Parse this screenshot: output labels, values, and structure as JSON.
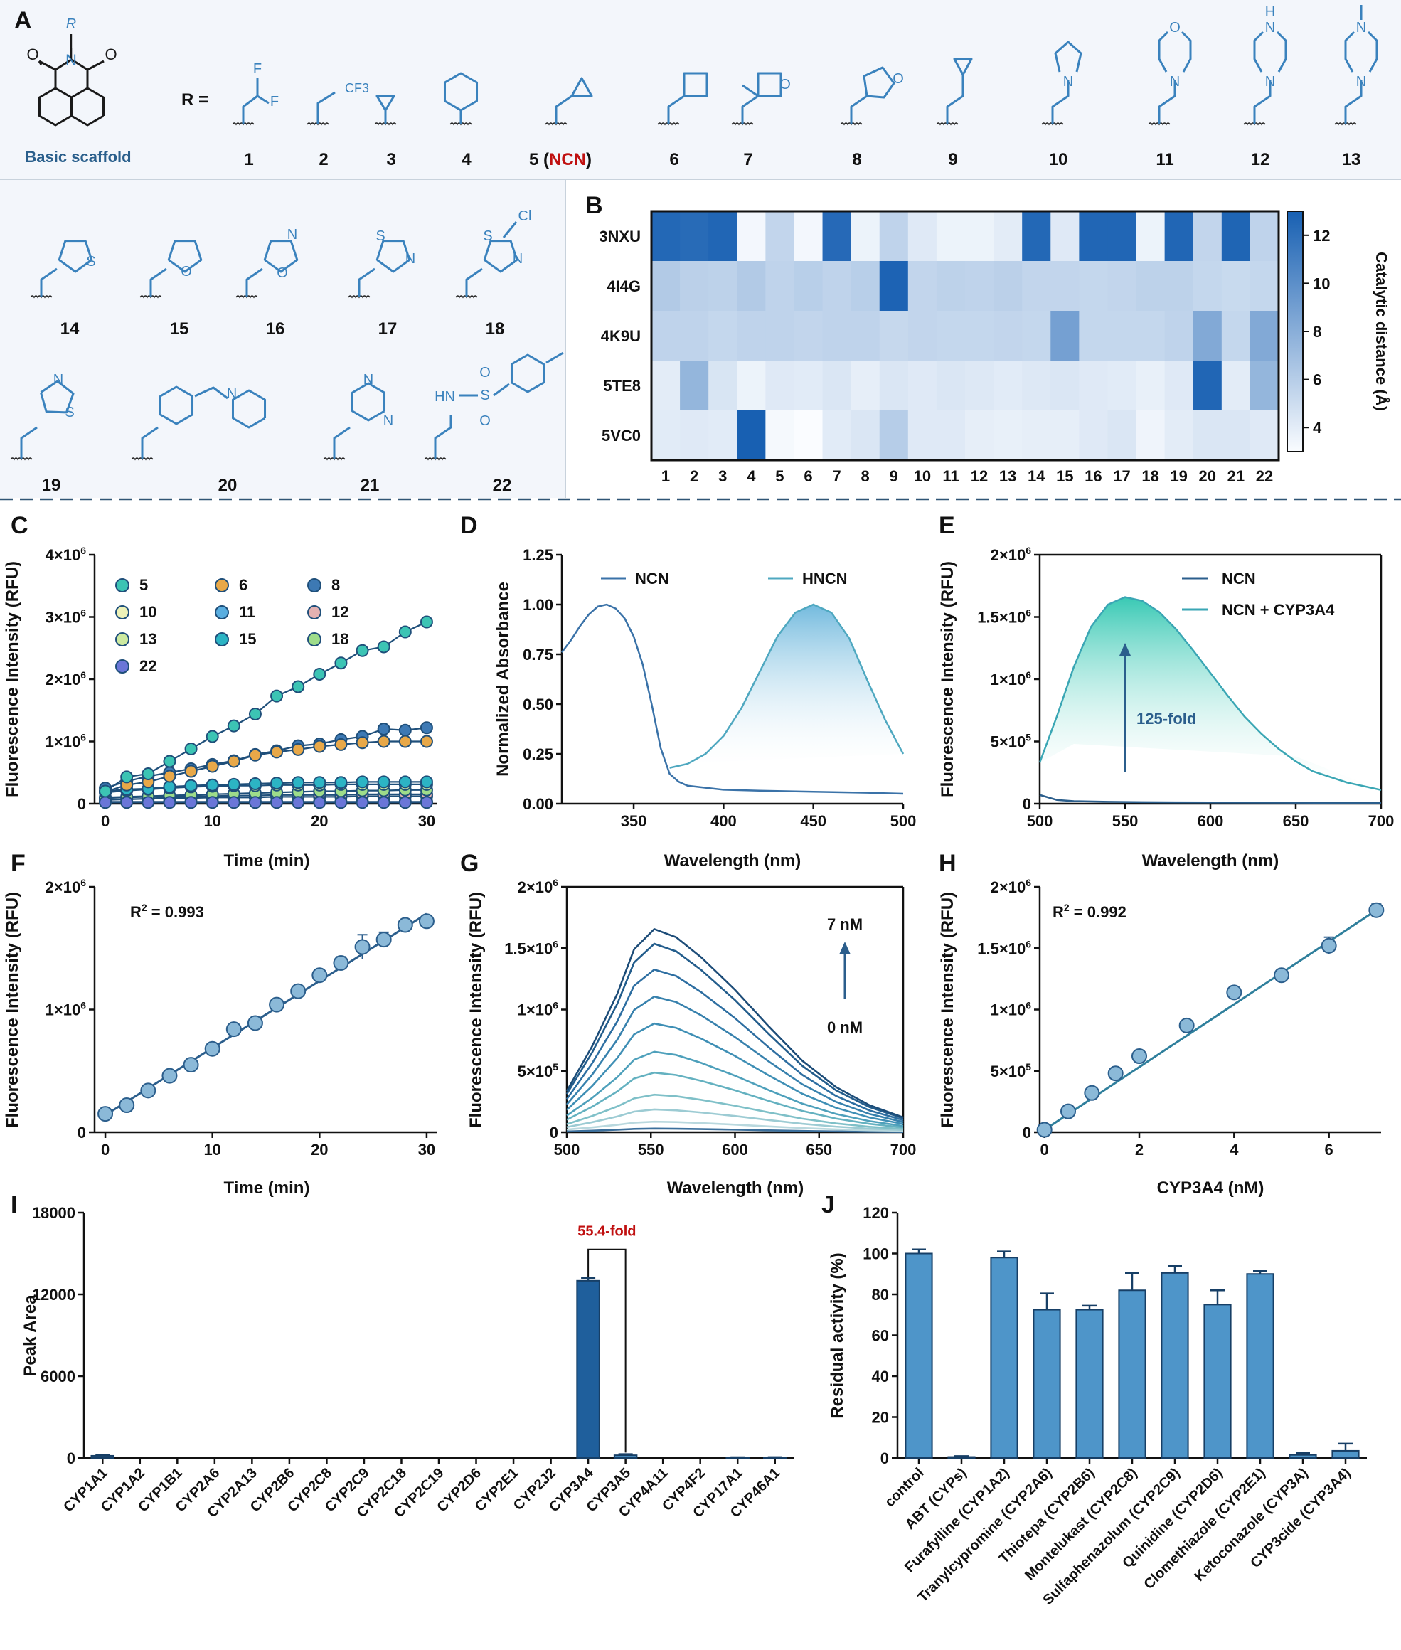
{
  "colors": {
    "scaffold_blue": "#3a82bd",
    "label_blue": "#2a5f8c",
    "ncn_red": "#c01010",
    "panel_bg": "#f3f6fb",
    "dash": "#2f5575",
    "bar_dark": "#1f5f9c",
    "bar_mid": "#4e95c9",
    "line_dark": "#2b5e8c",
    "line_light": "#4aa8b8",
    "teal_fill": "#2ec6b0"
  },
  "panelA": {
    "letter": "A",
    "caption": "Basic scaffold",
    "r_equals": "R =",
    "compound_labels": [
      "1",
      "2",
      "3",
      "4",
      "5 (",
      "NCN",
      ")",
      "6",
      "7",
      "8",
      "9",
      "10",
      "11",
      "12",
      "13"
    ],
    "row2_labels": [
      "14",
      "15",
      "16",
      "17",
      "18"
    ],
    "row3_labels": [
      "19",
      "20",
      "21",
      "22"
    ],
    "atoms": {
      "F": "F",
      "CF3": "CF3",
      "O": "O",
      "N": "N",
      "H": "H",
      "S": "S",
      "Cl": "Cl",
      "HN": "HN"
    }
  },
  "chart_data": [
    {
      "panel": "B",
      "type": "heatmap",
      "rows": [
        "3NXU",
        "4I4G",
        "4K9U",
        "5TE8",
        "5VC0"
      ],
      "columns": [
        "1",
        "2",
        "3",
        "4",
        "5",
        "6",
        "7",
        "8",
        "9",
        "10",
        "11",
        "12",
        "13",
        "14",
        "15",
        "16",
        "17",
        "18",
        "19",
        "20",
        "21",
        "22"
      ],
      "values": [
        [
          12.5,
          12.3,
          12.6,
          3.3,
          5.5,
          3.3,
          12.4,
          3.6,
          5.6,
          4.2,
          3.6,
          3.6,
          4.0,
          12.5,
          4.2,
          12.6,
          12.6,
          3.6,
          12.6,
          5.5,
          12.7,
          5.6
        ],
        [
          6.2,
          5.8,
          5.7,
          6.2,
          5.6,
          5.9,
          5.6,
          5.9,
          12.8,
          5.5,
          5.7,
          5.6,
          5.8,
          5.5,
          5.5,
          5.4,
          5.5,
          5.7,
          5.7,
          5.4,
          5.2,
          5.4
        ],
        [
          5.6,
          5.6,
          5.4,
          5.6,
          5.6,
          5.5,
          5.6,
          5.6,
          5.3,
          5.5,
          5.4,
          5.4,
          5.5,
          5.4,
          8.9,
          5.4,
          5.4,
          5.4,
          5.6,
          8.3,
          5.4,
          8.3
        ],
        [
          4.0,
          7.5,
          4.5,
          3.6,
          4.2,
          4.1,
          4.4,
          3.9,
          4.4,
          4.2,
          4.4,
          4.3,
          4.1,
          4.3,
          4.4,
          4.2,
          4.1,
          3.8,
          4.2,
          12.6,
          4.0,
          7.5
        ],
        [
          4.1,
          4.2,
          4.1,
          13.0,
          3.2,
          3.0,
          4.1,
          4.4,
          6.0,
          4.2,
          4.2,
          3.9,
          3.8,
          3.9,
          3.9,
          4.2,
          4.4,
          3.5,
          4.0,
          4.4,
          4.4,
          4.2
        ]
      ],
      "colorbar": {
        "label": "Catalytic distance (Å)",
        "ticks": [
          4,
          6,
          8,
          10,
          12
        ],
        "range": [
          3,
          13
        ]
      }
    },
    {
      "panel": "C",
      "type": "line",
      "xlabel": "Time (min)",
      "ylabel": "Fluorescence Intensity (RFU)",
      "xticks": [
        "0",
        "10",
        "20",
        "30"
      ],
      "yticks": [
        "0",
        "1×10",
        "2×10",
        "3×10",
        "4×10"
      ],
      "ytick_exp": "6",
      "xlim": [
        0,
        30
      ],
      "ylim": [
        0,
        4000000
      ],
      "x": [
        0,
        2,
        4,
        6,
        8,
        10,
        12,
        14,
        16,
        18,
        20,
        22,
        24,
        26,
        28,
        30
      ],
      "series": [
        {
          "name": "5",
          "color": "#3cc4b4",
          "values": [
            200000,
            430000,
            480000,
            680000,
            880000,
            1080000,
            1250000,
            1440000,
            1730000,
            1880000,
            2080000,
            2260000,
            2460000,
            2520000,
            2760000,
            2920000
          ],
          "err": [
            0,
            0,
            0,
            0,
            0,
            0,
            0,
            0,
            90000,
            0,
            60000,
            0,
            0,
            0,
            90000,
            0
          ]
        },
        {
          "name": "6",
          "color": "#e8a848",
          "values": [
            190000,
            300000,
            350000,
            440000,
            520000,
            600000,
            680000,
            780000,
            830000,
            870000,
            920000,
            950000,
            980000,
            1000000,
            1000000,
            1000000
          ],
          "err": [
            0,
            0,
            0,
            0,
            0,
            0,
            0,
            0,
            0,
            0,
            0,
            0,
            0,
            0,
            0,
            0
          ]
        },
        {
          "name": "8",
          "color": "#3d79b4",
          "values": [
            250000,
            360000,
            440000,
            500000,
            560000,
            630000,
            690000,
            790000,
            850000,
            930000,
            960000,
            1030000,
            1080000,
            1200000,
            1180000,
            1220000
          ],
          "err": [
            0,
            0,
            0,
            0,
            0,
            0,
            0,
            0,
            0,
            0,
            0,
            0,
            0,
            0,
            0,
            0
          ]
        },
        {
          "name": "10",
          "color": "#eef2b8",
          "values": [
            30000,
            30000,
            30000,
            30000,
            30000,
            30000,
            30000,
            30000,
            30000,
            30000,
            30000,
            30000,
            30000,
            30000,
            30000,
            30000
          ],
          "err": [
            0,
            0,
            0,
            0,
            0,
            0,
            0,
            0,
            0,
            0,
            0,
            0,
            0,
            0,
            0,
            0
          ]
        },
        {
          "name": "11",
          "color": "#5aaee0",
          "values": [
            60000,
            70000,
            80000,
            90000,
            90000,
            100000,
            100000,
            100000,
            110000,
            110000,
            110000,
            110000,
            120000,
            120000,
            120000,
            120000
          ],
          "err": [
            0,
            0,
            0,
            0,
            0,
            0,
            0,
            0,
            0,
            0,
            0,
            0,
            0,
            0,
            0,
            0
          ]
        },
        {
          "name": "12",
          "color": "#e3b1b1",
          "values": [
            90000,
            100000,
            110000,
            110000,
            120000,
            120000,
            130000,
            130000,
            140000,
            140000,
            140000,
            140000,
            150000,
            150000,
            150000,
            150000
          ],
          "err": [
            0,
            0,
            0,
            0,
            0,
            0,
            0,
            0,
            0,
            0,
            0,
            0,
            0,
            0,
            0,
            0
          ]
        },
        {
          "name": "13",
          "color": "#cdeaa0",
          "values": [
            180000,
            210000,
            230000,
            250000,
            270000,
            280000,
            290000,
            290000,
            300000,
            300000,
            300000,
            310000,
            310000,
            310000,
            310000,
            310000
          ],
          "err": [
            0,
            0,
            0,
            0,
            0,
            0,
            0,
            0,
            0,
            0,
            0,
            0,
            0,
            0,
            0,
            0
          ]
        },
        {
          "name": "15",
          "color": "#2cb4c4",
          "values": [
            200000,
            230000,
            240000,
            270000,
            290000,
            300000,
            310000,
            320000,
            330000,
            340000,
            340000,
            340000,
            350000,
            350000,
            350000,
            350000
          ],
          "err": [
            0,
            0,
            0,
            0,
            0,
            0,
            0,
            60000,
            0,
            100000,
            60000,
            0,
            60000,
            0,
            60000,
            0
          ]
        },
        {
          "name": "18",
          "color": "#9edc8a",
          "values": [
            100000,
            110000,
            120000,
            130000,
            140000,
            150000,
            160000,
            170000,
            180000,
            190000,
            200000,
            200000,
            210000,
            210000,
            220000,
            220000
          ],
          "err": [
            0,
            0,
            0,
            0,
            0,
            0,
            0,
            0,
            0,
            0,
            0,
            0,
            0,
            0,
            0,
            0
          ]
        },
        {
          "name": "22",
          "color": "#6a76d8",
          "values": [
            20000,
            20000,
            20000,
            20000,
            20000,
            20000,
            20000,
            20000,
            20000,
            20000,
            20000,
            20000,
            20000,
            20000,
            20000,
            20000
          ],
          "err": [
            0,
            0,
            0,
            0,
            0,
            0,
            0,
            0,
            0,
            0,
            0,
            0,
            0,
            0,
            0,
            0
          ]
        }
      ]
    },
    {
      "panel": "D",
      "type": "line",
      "xlabel": "Wavelength (nm)",
      "ylabel": "Normalized Absorbance",
      "xticks": [
        "350",
        "400",
        "450",
        "500"
      ],
      "yticks": [
        "0.00",
        "0.25",
        "0.50",
        "0.75",
        "1.00",
        "1.25"
      ],
      "xlim": [
        310,
        500
      ],
      "ylim": [
        0,
        1.25
      ],
      "series": [
        {
          "name": "NCN",
          "x": [
            310,
            315,
            320,
            325,
            330,
            335,
            340,
            345,
            350,
            355,
            360,
            365,
            370,
            375,
            380,
            390,
            400,
            420,
            450,
            480,
            500
          ],
          "values": [
            0.76,
            0.82,
            0.89,
            0.95,
            0.99,
            1.0,
            0.98,
            0.93,
            0.84,
            0.7,
            0.5,
            0.28,
            0.15,
            0.11,
            0.09,
            0.08,
            0.07,
            0.065,
            0.06,
            0.055,
            0.05
          ]
        },
        {
          "name": "HNCN",
          "x": [
            370,
            380,
            390,
            400,
            410,
            420,
            430,
            440,
            450,
            460,
            470,
            480,
            490,
            500
          ],
          "values": [
            0.18,
            0.2,
            0.25,
            0.34,
            0.48,
            0.66,
            0.84,
            0.96,
            1.0,
            0.96,
            0.83,
            0.62,
            0.42,
            0.25
          ]
        }
      ]
    },
    {
      "panel": "E",
      "type": "area",
      "xlabel": "Wavelength (nm)",
      "ylabel": "Fluorescence Intensity (RFU)",
      "xticks": [
        "500",
        "550",
        "600",
        "650",
        "700"
      ],
      "yticks": [
        "0",
        "5×10",
        "1×10",
        "1.5×10",
        "2×10"
      ],
      "ytick_exps": [
        "",
        "5",
        "6",
        "6",
        "6"
      ],
      "xlim": [
        500,
        700
      ],
      "ylim": [
        0,
        2000000
      ],
      "annotation": "125-fold",
      "series": [
        {
          "name": "NCN",
          "x": [
            500,
            510,
            520,
            540,
            560,
            600,
            650,
            700
          ],
          "values": [
            70000,
            30000,
            20000,
            15000,
            12000,
            10000,
            8000,
            5000
          ]
        },
        {
          "name": "NCN + CYP3A4",
          "x": [
            500,
            510,
            520,
            530,
            540,
            550,
            560,
            570,
            580,
            590,
            600,
            610,
            620,
            630,
            640,
            650,
            660,
            680,
            700
          ],
          "values": [
            330000,
            700000,
            1100000,
            1420000,
            1600000,
            1660000,
            1630000,
            1540000,
            1400000,
            1230000,
            1050000,
            870000,
            700000,
            560000,
            440000,
            340000,
            260000,
            170000,
            110000
          ]
        }
      ]
    },
    {
      "panel": "F",
      "type": "scatter",
      "xlabel": "Time (min)",
      "ylabel": "Fluorescence Intensity (RFU)",
      "xticks": [
        "0",
        "10",
        "20",
        "30"
      ],
      "yticks": [
        "0",
        "1×10",
        "2×10"
      ],
      "ytick_exp": "6",
      "xlim": [
        0,
        30
      ],
      "ylim": [
        0,
        2000000
      ],
      "r2": "R",
      "r2_sup": "2",
      "r2_val": " = 0.993",
      "x": [
        0,
        2,
        4,
        6,
        8,
        10,
        12,
        14,
        16,
        18,
        20,
        22,
        24,
        26,
        28,
        30
      ],
      "values": [
        150000,
        220000,
        340000,
        460000,
        550000,
        680000,
        840000,
        890000,
        1040000,
        1150000,
        1280000,
        1380000,
        1510000,
        1570000,
        1690000,
        1720000
      ],
      "err": [
        0,
        0,
        0,
        0,
        0,
        0,
        0,
        0,
        0,
        0,
        0,
        50000,
        100000,
        60000,
        0,
        0
      ],
      "fit": [
        140000,
        1780000
      ]
    },
    {
      "panel": "G",
      "type": "line",
      "xlabel": "Wavelength (nm)",
      "ylabel": "Fluorescence Intensity (RFU)",
      "xticks": [
        "500",
        "550",
        "600",
        "650",
        "700"
      ],
      "yticks": [
        "0",
        "5×10",
        "1×10",
        "1.5×10",
        "2×10"
      ],
      "xlim": [
        500,
        700
      ],
      "ylim": [
        0,
        2000000
      ],
      "annotation_top": "7 nM",
      "annotation_bottom": "0 nM",
      "peaks": [
        30000,
        80000,
        180000,
        300000,
        480000,
        650000,
        880000,
        1100000,
        1320000,
        1530000,
        1650000
      ]
    },
    {
      "panel": "H",
      "type": "scatter",
      "xlabel": "CYP3A4 (nM)",
      "ylabel": "Fluorescence Intensity (RFU)",
      "xticks": [
        "0",
        "2",
        "4",
        "6"
      ],
      "yticks": [
        "0",
        "5×10",
        "1×10",
        "1.5×10",
        "2×10"
      ],
      "xlim": [
        0,
        7
      ],
      "ylim": [
        0,
        2000000
      ],
      "r2": "R",
      "r2_sup": "2",
      "r2_val": " = 0.992",
      "x": [
        0,
        0.5,
        1,
        1.5,
        2,
        3,
        4,
        5,
        6,
        7
      ],
      "values": [
        20000,
        170000,
        320000,
        480000,
        620000,
        870000,
        1140000,
        1280000,
        1520000,
        1810000
      ],
      "err": [
        0,
        0,
        0,
        0,
        0,
        0,
        0,
        0,
        70000,
        50000
      ],
      "fit": [
        20000,
        1810000
      ]
    },
    {
      "panel": "I",
      "type": "bar",
      "ylabel": "Peak Area",
      "yticks": [
        "0",
        "6000",
        "12000",
        "18000"
      ],
      "ylim": [
        0,
        18000
      ],
      "categories": [
        "CYP1A1",
        "CYP1A2",
        "CYP1B1",
        "CYP2A6",
        "CYP2A13",
        "CYP2B6",
        "CYP2C8",
        "CYP2C9",
        "CYP2C18",
        "CYP2C19",
        "CYP2D6",
        "CYP2E1",
        "CYP2J2",
        "CYP3A4",
        "CYP3A5",
        "CYP4A11",
        "CYP4F2",
        "CYP17A1",
        "CYP46A1"
      ],
      "values": [
        160,
        0,
        0,
        0,
        0,
        0,
        0,
        0,
        0,
        0,
        0,
        0,
        0,
        13000,
        200,
        0,
        0,
        30,
        40
      ],
      "err": [
        60,
        0,
        0,
        0,
        0,
        0,
        0,
        0,
        0,
        0,
        0,
        0,
        0,
        200,
        80,
        0,
        0,
        20,
        20
      ],
      "annotation": "55.4-fold"
    },
    {
      "panel": "J",
      "type": "bar",
      "ylabel": "Residual activity (%)",
      "yticks": [
        "0",
        "20",
        "40",
        "60",
        "80",
        "100",
        "120"
      ],
      "ylim": [
        0,
        120
      ],
      "categories": [
        "control",
        "ABT (CYPs)",
        "Furafylline (CYP1A2)",
        "Tranylcypromine (CYP2A6)",
        "Thiotepa (CYP2B6)",
        "Montelukast (CYP2C8)",
        "Sulfaphenazolum (CYP2C9)",
        "Quinidine (CYP2D6)",
        "Clomethiazole (CYP2E1)",
        "Ketoconazole (CYP3A)",
        "CYP3cide (CYP3A4)"
      ],
      "values": [
        100,
        0.5,
        98,
        72.5,
        72.5,
        82,
        90.5,
        75,
        90,
        1.5,
        3.5
      ],
      "err": [
        2,
        0.4,
        3,
        8,
        2,
        8.5,
        3.5,
        7,
        1.5,
        1,
        3.5
      ]
    }
  ],
  "panel_letters": [
    "B",
    "C",
    "D",
    "E",
    "F",
    "G",
    "H",
    "I",
    "J"
  ]
}
